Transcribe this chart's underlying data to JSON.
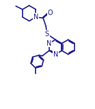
{
  "bg_color": "#ffffff",
  "line_color": "#1a1a8c",
  "line_width": 1.2,
  "font_size": 7.0,
  "figsize": [
    1.39,
    1.6
  ],
  "dpi": 100,
  "xlim": [
    0,
    10
  ],
  "ylim": [
    0,
    11.5
  ]
}
